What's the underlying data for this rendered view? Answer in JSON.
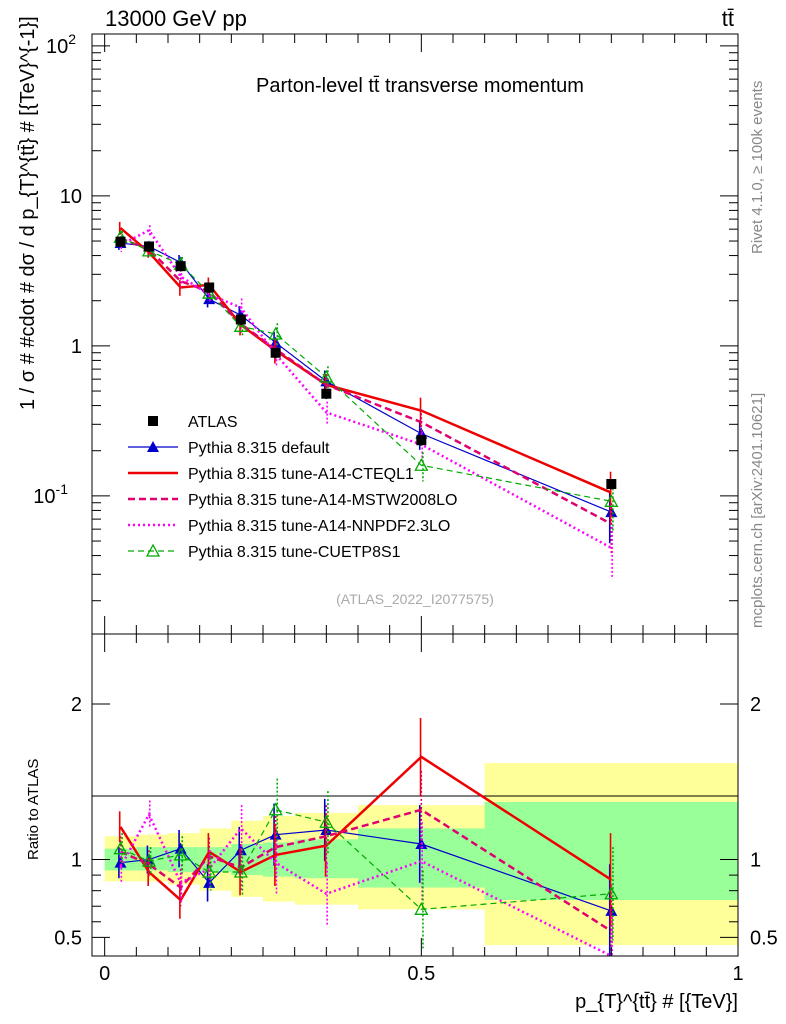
{
  "header": {
    "energy_label": "13000 GeV pp",
    "process_label": "tt̄"
  },
  "side_labels": {
    "rivet": "Rivet 4.1.0, ≥ 100k events",
    "mcplots": "mcplots.cern.ch [arXiv:2401.10621]"
  },
  "chart_data": [
    {
      "type": "line",
      "scale": "log",
      "title": "Parton-level tt̄ transverse momentum",
      "watermark": "(ATLAS_2022_I2077575)",
      "xlabel": "p_{T}^{tt̄} # [{TeV}]",
      "ylabel": "1 / σ # #cdot # dσ / d p_{T}^{tt̄} # [{TeV}^{-1}]",
      "xlim": [
        -0.02,
        1.0
      ],
      "ylim": [
        0.012,
        120
      ],
      "y_tick_labels": [
        {
          "value": 0.1,
          "label": "10^-1"
        },
        {
          "value": 1,
          "label": "1"
        },
        {
          "value": 10,
          "label": "10"
        },
        {
          "value": 100,
          "label": "10^2"
        }
      ],
      "x": [
        0.025,
        0.07,
        0.12,
        0.165,
        0.215,
        0.27,
        0.35,
        0.5,
        0.8
      ],
      "series": [
        {
          "name": "ATLAS",
          "style": "data",
          "color": "#000000",
          "values": [
            4.95,
            4.6,
            3.4,
            2.45,
            1.5,
            0.9,
            0.48,
            0.235,
            0.12
          ]
        },
        {
          "name": "Pythia 8.315 default",
          "style": "solid-thin",
          "marker": "filled-triangle",
          "color": "#0000cc",
          "values": [
            4.85,
            4.6,
            3.6,
            2.05,
            1.6,
            1.05,
            0.58,
            0.26,
            0.078
          ]
        },
        {
          "name": "Pythia 8.315 tune-A14-CTEQL1",
          "style": "solid-thick",
          "marker": "none",
          "color": "#ee0000",
          "values": [
            6.1,
            4.2,
            2.45,
            2.55,
            1.38,
            0.93,
            0.55,
            0.37,
            0.105
          ]
        },
        {
          "name": "Pythia 8.315 tune-A14-MSTW2008LO",
          "style": "dashed",
          "marker": "none",
          "color": "#e0006e",
          "values": [
            5.2,
            4.4,
            2.7,
            2.3,
            1.4,
            0.95,
            0.55,
            0.31,
            0.065
          ]
        },
        {
          "name": "Pythia 8.315 tune-A14-NNPDF2.3LO",
          "style": "dotted",
          "marker": "none",
          "color": "#ff00ff",
          "values": [
            4.7,
            5.9,
            2.9,
            2.2,
            1.8,
            0.88,
            0.36,
            0.22,
            0.045
          ]
        },
        {
          "name": "Pythia 8.315 tune-CUETP8S1",
          "style": "dashed-thin",
          "marker": "open-triangle",
          "color": "#00aa00",
          "values": [
            5.3,
            4.3,
            3.5,
            2.25,
            1.35,
            1.2,
            0.62,
            0.16,
            0.092
          ]
        }
      ]
    },
    {
      "type": "line",
      "title": "",
      "ylabel": "Ratio to ATLAS",
      "xlim": [
        -0.02,
        1.0
      ],
      "ylim": [
        0.38,
        2.45
      ],
      "y_tick_labels": [
        0.5,
        1,
        2
      ],
      "x_tick_labels": [
        0,
        0.5,
        1
      ],
      "uncertainty_bands": {
        "edges": [
          0.0,
          0.05,
          0.1,
          0.15,
          0.2,
          0.25,
          0.3,
          0.4,
          0.6,
          1.0
        ],
        "inner": [
          [
            0.93,
            1.07
          ],
          [
            0.93,
            1.08
          ],
          [
            0.92,
            1.08
          ],
          [
            0.92,
            1.08
          ],
          [
            0.9,
            1.1
          ],
          [
            0.89,
            1.11
          ],
          [
            0.88,
            1.13
          ],
          [
            0.82,
            1.2
          ],
          [
            0.74,
            1.37
          ]
        ],
        "outer": [
          [
            0.86,
            1.15
          ],
          [
            0.86,
            1.16
          ],
          [
            0.84,
            1.17
          ],
          [
            0.8,
            1.2
          ],
          [
            0.76,
            1.25
          ],
          [
            0.73,
            1.28
          ],
          [
            0.71,
            1.3
          ],
          [
            0.68,
            1.35
          ],
          [
            0.45,
            1.62
          ]
        ],
        "inner_color": "#99ff99",
        "outer_color": "#ffff99"
      },
      "x": [
        0.025,
        0.07,
        0.12,
        0.165,
        0.215,
        0.27,
        0.35,
        0.5,
        0.8
      ],
      "series": [
        {
          "name": "Pythia 8.315 default",
          "values": [
            0.98,
            1.0,
            1.07,
            0.85,
            1.06,
            1.16,
            1.19,
            1.1,
            0.67
          ]
        },
        {
          "name": "Pythia 8.315 tune-A14-CTEQL1",
          "values": [
            1.21,
            0.92,
            0.74,
            1.05,
            0.92,
            1.03,
            1.09,
            1.66,
            0.87
          ]
        },
        {
          "name": "Pythia 8.315 tune-A14-MSTW2008LO",
          "values": [
            1.05,
            0.97,
            0.82,
            1.02,
            0.95,
            1.08,
            1.15,
            1.32,
            0.54
          ]
        },
        {
          "name": "Pythia 8.315 tune-A14-NNPDF2.3LO",
          "values": [
            0.95,
            1.29,
            0.85,
            0.94,
            1.2,
            0.98,
            0.78,
            0.99,
            0.33
          ]
        },
        {
          "name": "Pythia 8.315 tune-CUETP8S1",
          "values": [
            1.07,
            0.99,
            1.03,
            0.92,
            0.92,
            1.32,
            1.24,
            0.68,
            0.78
          ]
        }
      ]
    }
  ]
}
